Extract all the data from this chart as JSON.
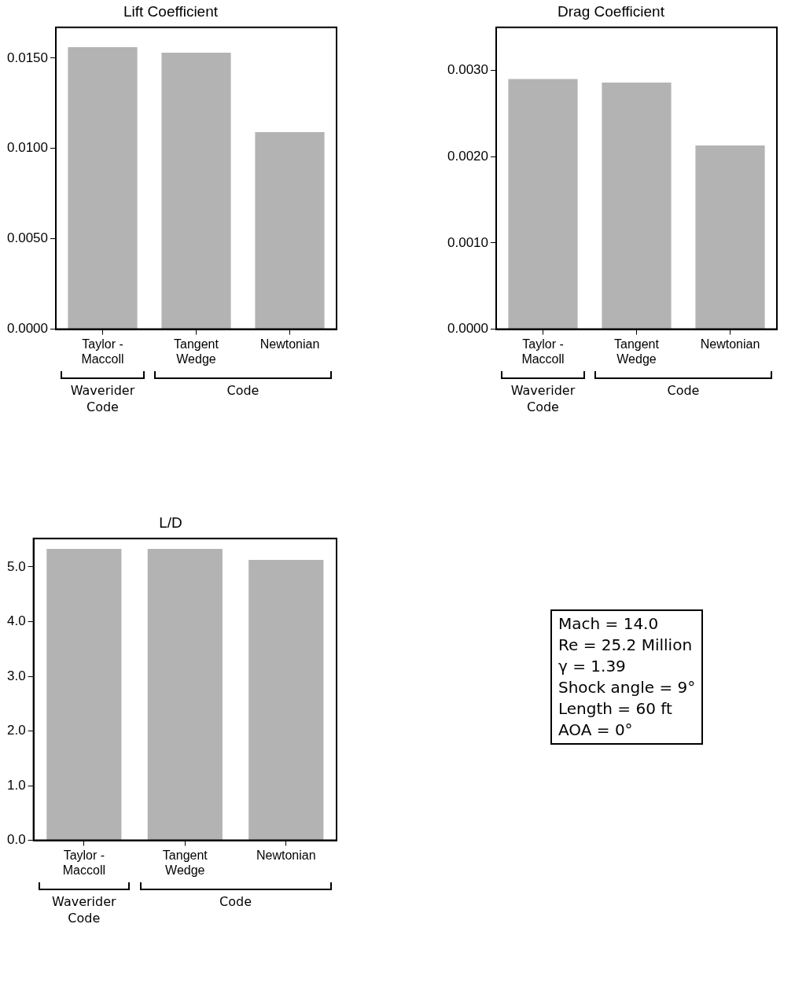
{
  "chart_data": [
    {
      "type": "bar",
      "title": "Lift Coefficient",
      "categories": [
        "Taylor - Maccoll",
        "Tangent Wedge",
        "Newtonian"
      ],
      "values": [
        0.0156,
        0.0153,
        0.0109
      ],
      "color": "#b3b3b3",
      "ylim": [
        0,
        0.0167
      ],
      "yticks": [
        {
          "value": 0,
          "label": "0.0000"
        },
        {
          "value": 0.005,
          "label": "0.0050"
        },
        {
          "value": 0.01,
          "label": "0.0100"
        },
        {
          "value": 0.015,
          "label": "0.0150"
        }
      ],
      "annotations": [
        "Waverider Code",
        "Code"
      ]
    },
    {
      "type": "bar",
      "title": "Drag Coefficient",
      "categories": [
        "Taylor - Maccoll",
        "Tangent Wedge",
        "Newtonian"
      ],
      "values": [
        0.0029,
        0.00286,
        0.00213
      ],
      "color": "#b3b3b3",
      "ylim": [
        0,
        0.0035
      ],
      "yticks": [
        {
          "value": 0,
          "label": "0.0000"
        },
        {
          "value": 0.001,
          "label": "0.0010"
        },
        {
          "value": 0.002,
          "label": "0.0020"
        },
        {
          "value": 0.003,
          "label": "0.0030"
        }
      ],
      "annotations": [
        "Waverider Code",
        "Code"
      ]
    },
    {
      "type": "bar",
      "title": "L/D",
      "categories": [
        "Taylor - Maccoll",
        "Tangent Wedge",
        "Newtonian"
      ],
      "values": [
        5.33,
        5.33,
        5.13
      ],
      "color": "#b3b3b3",
      "ylim": [
        0,
        5.52
      ],
      "yticks": [
        {
          "value": 0,
          "label": "0.0"
        },
        {
          "value": 1,
          "label": "1.0"
        },
        {
          "value": 2,
          "label": "2.0"
        },
        {
          "value": 3,
          "label": "3.0"
        },
        {
          "value": 4,
          "label": "4.0"
        },
        {
          "value": 5,
          "label": "5.0"
        }
      ],
      "annotations": [
        "Waverider Code",
        "Code"
      ]
    },
    {
      "type": "other",
      "annotations": [
        "Mach = 14.0",
        "Re = 25.2 Million",
        "γ = 1.39",
        "Shock angle = 9°",
        "Length = 60 ft",
        "AOA = 0°"
      ]
    }
  ]
}
